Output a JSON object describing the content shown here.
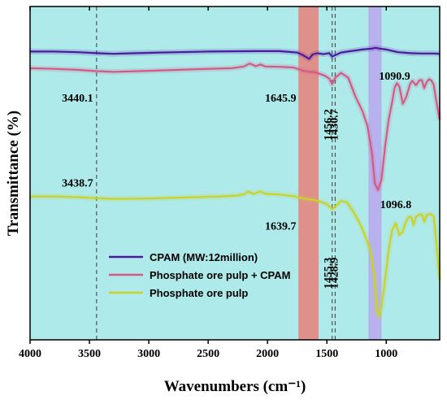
{
  "chart_data": {
    "type": "line",
    "xlabel": "Wavenumbers (cm⁻¹)",
    "ylabel": "Transmittance (%)",
    "xlim": [
      4000,
      550
    ],
    "x_reversed": true,
    "x_ticks": [
      4000,
      3500,
      3000,
      2500,
      2000,
      1500,
      1000
    ],
    "y_ticks_shown": false,
    "background": "#aeeaea",
    "highlight_bands": [
      {
        "x_range": [
          1740,
          1570
        ],
        "color": "#e8807a"
      },
      {
        "x_range": [
          1150,
          1040
        ],
        "color": "#b9a8ee"
      }
    ],
    "dashed_lines": [
      3440,
      1456,
      1430
    ],
    "annotations": [
      {
        "text": "3440.1",
        "x": 3600,
        "y": 71.5
      },
      {
        "text": "1645.9",
        "x": 1890,
        "y": 71.5
      },
      {
        "text": "1456.2",
        "x": 1462,
        "y": 64.5,
        "rotate": -90
      },
      {
        "text": "1430.7",
        "x": 1410,
        "y": 64.5,
        "rotate": -90
      },
      {
        "text": "1090.9",
        "x": 930,
        "y": 78
      },
      {
        "text": "3438.7",
        "x": 3600,
        "y": 46
      },
      {
        "text": "1639.7",
        "x": 1890,
        "y": 33
      },
      {
        "text": "1096.8",
        "x": 920,
        "y": 39.5
      },
      {
        "text": "1455.3",
        "x": 1462,
        "y": 20,
        "rotate": -90
      },
      {
        "text": "1428.9",
        "x": 1410,
        "y": 20,
        "rotate": -90
      }
    ],
    "legend": {
      "placement": "center-left"
    },
    "y_unit_note": "y in arbitrary transmittance units (0-100), axis unlabeled",
    "series": [
      {
        "name": "CPAM (MW:12million)",
        "color": "#4b1a9e",
        "points": [
          [
            4000,
            86.5
          ],
          [
            3800,
            86.5
          ],
          [
            3600,
            86.3
          ],
          [
            3440,
            86.0
          ],
          [
            3300,
            85.8
          ],
          [
            3100,
            86.0
          ],
          [
            2900,
            86.2
          ],
          [
            2500,
            86.5
          ],
          [
            2100,
            86.6
          ],
          [
            1900,
            86.6
          ],
          [
            1750,
            86.2
          ],
          [
            1700,
            85.4
          ],
          [
            1650,
            84.3
          ],
          [
            1620,
            85.6
          ],
          [
            1580,
            86.0
          ],
          [
            1530,
            85.7
          ],
          [
            1480,
            86.0
          ],
          [
            1456,
            85.0
          ],
          [
            1430,
            85.4
          ],
          [
            1380,
            86.2
          ],
          [
            1300,
            86.6
          ],
          [
            1200,
            87.1
          ],
          [
            1120,
            87.4
          ],
          [
            1090,
            87.6
          ],
          [
            1060,
            87.4
          ],
          [
            1000,
            87.1
          ],
          [
            900,
            86.3
          ],
          [
            800,
            86.0
          ],
          [
            700,
            85.9
          ],
          [
            600,
            85.9
          ],
          [
            550,
            85.8
          ]
        ]
      },
      {
        "name": "Phosphate ore pulp + CPAM",
        "color": "#d45a86",
        "points": [
          [
            4000,
            81.5
          ],
          [
            3800,
            81.3
          ],
          [
            3600,
            81.0
          ],
          [
            3440,
            80.6
          ],
          [
            3300,
            80.4
          ],
          [
            3000,
            80.7
          ],
          [
            2600,
            81.2
          ],
          [
            2300,
            81.5
          ],
          [
            2200,
            82.0
          ],
          [
            2150,
            82.9
          ],
          [
            2100,
            82.1
          ],
          [
            2060,
            82.6
          ],
          [
            2020,
            82.0
          ],
          [
            1900,
            81.9
          ],
          [
            1780,
            81.7
          ],
          [
            1700,
            80.7
          ],
          [
            1645,
            80.4
          ],
          [
            1600,
            80.3
          ],
          [
            1520,
            79.3
          ],
          [
            1480,
            78.4
          ],
          [
            1456,
            76.7
          ],
          [
            1430,
            78.6
          ],
          [
            1380,
            80.1
          ],
          [
            1320,
            78.6
          ],
          [
            1260,
            73.0
          ],
          [
            1200,
            68.6
          ],
          [
            1160,
            64.4
          ],
          [
            1120,
            56.0
          ],
          [
            1096,
            47.0
          ],
          [
            1070,
            45.0
          ],
          [
            1040,
            48.0
          ],
          [
            1010,
            58.0
          ],
          [
            980,
            66.0
          ],
          [
            950,
            71.5
          ],
          [
            930,
            75.6
          ],
          [
            910,
            77.0
          ],
          [
            890,
            76.0
          ],
          [
            860,
            70.8
          ],
          [
            830,
            73.0
          ],
          [
            800,
            76.7
          ],
          [
            780,
            77.7
          ],
          [
            750,
            76.4
          ],
          [
            720,
            77.9
          ],
          [
            700,
            77.9
          ],
          [
            680,
            75.5
          ],
          [
            660,
            77.3
          ],
          [
            640,
            78.2
          ],
          [
            620,
            77.8
          ],
          [
            600,
            76.5
          ],
          [
            580,
            72.0
          ],
          [
            560,
            68.0
          ],
          [
            550,
            66.0
          ]
        ]
      },
      {
        "name": "Phosphate ore pulp",
        "color": "#c9d22a",
        "points": [
          [
            4000,
            43.0
          ],
          [
            3800,
            43.0
          ],
          [
            3600,
            42.8
          ],
          [
            3440,
            42.5
          ],
          [
            3300,
            42.3
          ],
          [
            3000,
            42.4
          ],
          [
            2700,
            42.7
          ],
          [
            2400,
            43.0
          ],
          [
            2250,
            43.3
          ],
          [
            2200,
            43.7
          ],
          [
            2160,
            44.5
          ],
          [
            2120,
            43.8
          ],
          [
            2060,
            44.5
          ],
          [
            2020,
            43.8
          ],
          [
            1900,
            43.6
          ],
          [
            1780,
            43.1
          ],
          [
            1700,
            42.4
          ],
          [
            1640,
            42.1
          ],
          [
            1600,
            41.9
          ],
          [
            1540,
            41.3
          ],
          [
            1500,
            40.7
          ],
          [
            1455,
            39.2
          ],
          [
            1428,
            40.0
          ],
          [
            1380,
            41.7
          ],
          [
            1330,
            41.2
          ],
          [
            1270,
            38.0
          ],
          [
            1210,
            34.0
          ],
          [
            1160,
            29.6
          ],
          [
            1130,
            26.0
          ],
          [
            1100,
            19.0
          ],
          [
            1080,
            8.6
          ],
          [
            1060,
            7.0
          ],
          [
            1040,
            10.0
          ],
          [
            1010,
            18.0
          ],
          [
            980,
            27.0
          ],
          [
            950,
            33.0
          ],
          [
            920,
            35.0
          ],
          [
            890,
            31.5
          ],
          [
            860,
            32.5
          ],
          [
            840,
            35.0
          ],
          [
            810,
            36.9
          ],
          [
            790,
            36.9
          ],
          [
            770,
            34.5
          ],
          [
            750,
            36.9
          ],
          [
            720,
            37.6
          ],
          [
            700,
            37.6
          ],
          [
            680,
            35.5
          ],
          [
            660,
            37.4
          ],
          [
            630,
            37.8
          ],
          [
            600,
            37.0
          ],
          [
            580,
            30.0
          ],
          [
            560,
            22.0
          ],
          [
            550,
            18.0
          ]
        ]
      }
    ]
  }
}
